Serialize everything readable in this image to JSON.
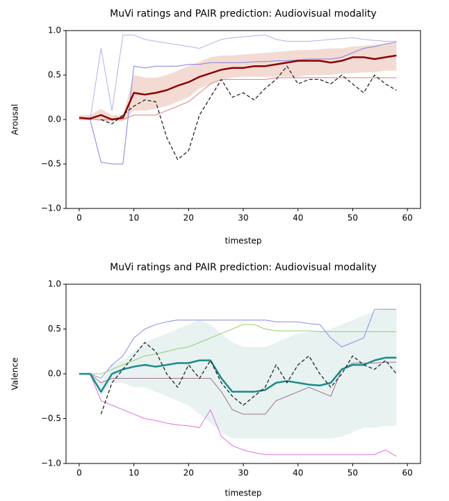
{
  "chart_data": [
    {
      "type": "line",
      "title": "MuVi ratings and PAIR prediction: Audiovisual modality",
      "xlabel": "timestep",
      "ylabel": "Arousal",
      "xlim": [
        -2.4,
        62.4
      ],
      "ylim": [
        -1,
        1
      ],
      "xticks": [
        0,
        10,
        20,
        30,
        40,
        50,
        60
      ],
      "yticks": [
        {
          "value": -1,
          "label": "−1.0"
        },
        {
          "value": -0.5,
          "label": "−0.5"
        },
        {
          "value": 0,
          "label": "0.0"
        },
        {
          "value": 0.5,
          "label": "0.5"
        },
        {
          "value": 1,
          "label": "1.0"
        }
      ],
      "x": [
        0,
        2,
        4,
        6,
        8,
        10,
        12,
        14,
        16,
        18,
        20,
        22,
        24,
        26,
        28,
        30,
        32,
        34,
        36,
        38,
        40,
        42,
        44,
        46,
        48,
        50,
        52,
        54,
        56,
        58
      ],
      "band": {
        "color": "#e8b8aa",
        "lower": [
          0,
          0,
          -0.02,
          -0.02,
          -0.02,
          0.1,
          0.1,
          0.12,
          0.15,
          0.2,
          0.25,
          0.35,
          0.4,
          0.45,
          0.47,
          0.48,
          0.48,
          0.48,
          0.48,
          0.48,
          0.48,
          0.5,
          0.5,
          0.5,
          0.52,
          0.52,
          0.53,
          0.53,
          0.55,
          0.55
        ],
        "upper": [
          0.05,
          0.05,
          0.12,
          0.05,
          0.05,
          0.5,
          0.47,
          0.47,
          0.5,
          0.55,
          0.6,
          0.65,
          0.7,
          0.72,
          0.72,
          0.73,
          0.74,
          0.75,
          0.76,
          0.77,
          0.78,
          0.78,
          0.79,
          0.8,
          0.8,
          0.82,
          0.83,
          0.84,
          0.85,
          0.86
        ]
      },
      "series": [
        {
          "color": "#b0b0f0",
          "width": 1,
          "values": [
            0,
            0,
            0.8,
            0.1,
            0.95,
            0.95,
            0.9,
            0.88,
            0.86,
            0.84,
            0.82,
            0.8,
            0.85,
            0.9,
            0.92,
            0.93,
            0.94,
            0.95,
            0.9,
            0.88,
            0.88,
            0.88,
            0.89,
            0.9,
            0.91,
            0.92,
            0.9,
            0.89,
            0.88,
            0.88
          ]
        },
        {
          "color": "#8080e0",
          "width": 1,
          "values": [
            0,
            0,
            -0.48,
            -0.5,
            -0.5,
            0.6,
            0.58,
            0.6,
            0.6,
            0.6,
            0.62,
            0.62,
            0.64,
            0.64,
            0.64,
            0.64,
            0.65,
            0.65,
            0.66,
            0.66,
            0.67,
            0.68,
            0.68,
            0.68,
            0.7,
            0.75,
            0.8,
            0.82,
            0.85,
            0.87
          ]
        },
        {
          "color": "#d88080",
          "width": 1,
          "values": [
            0,
            0,
            0,
            0,
            0,
            0.05,
            0.05,
            0.05,
            0.1,
            0.15,
            0.2,
            0.3,
            0.4,
            0.45,
            0.45,
            0.45,
            0.45,
            0.45,
            0.47,
            0.47,
            0.47,
            0.47,
            0.47,
            0.47,
            0.47,
            0.47,
            0.47,
            0.47,
            0.47,
            0.47
          ]
        },
        {
          "color": "#8b0000",
          "width": 2.5,
          "values": [
            0.02,
            0.01,
            0.05,
            0,
            0.02,
            0.3,
            0.28,
            0.3,
            0.33,
            0.38,
            0.42,
            0.48,
            0.52,
            0.56,
            0.58,
            0.58,
            0.6,
            0.6,
            0.62,
            0.64,
            0.66,
            0.66,
            0.66,
            0.64,
            0.66,
            0.7,
            0.7,
            0.68,
            0.7,
            0.72
          ]
        },
        {
          "color": "#222222",
          "width": 1.3,
          "style": "dashed",
          "values": [
            null,
            null,
            0,
            -0.05,
            0.05,
            0.15,
            0.22,
            0.2,
            -0.2,
            -0.45,
            -0.35,
            0.05,
            0.25,
            0.45,
            0.25,
            0.3,
            0.22,
            0.35,
            0.45,
            0.6,
            0.4,
            0.45,
            0.45,
            0.4,
            0.5,
            0.4,
            0.3,
            0.5,
            0.4,
            0.33
          ]
        }
      ]
    },
    {
      "type": "line",
      "title": "MuVi ratings and PAIR prediction: Audiovisual modality",
      "xlabel": "timestep",
      "ylabel": "Valence",
      "xlim": [
        -2.4,
        62.4
      ],
      "ylim": [
        -1,
        1
      ],
      "xticks": [
        0,
        10,
        20,
        30,
        40,
        50,
        60
      ],
      "yticks": [
        {
          "value": -1,
          "label": "−1.0"
        },
        {
          "value": -0.5,
          "label": "−0.5"
        },
        {
          "value": 0,
          "label": "0.0"
        },
        {
          "value": 0.5,
          "label": "0.5"
        },
        {
          "value": 1,
          "label": "1.0"
        }
      ],
      "x": [
        0,
        2,
        4,
        6,
        8,
        10,
        12,
        14,
        16,
        18,
        20,
        22,
        24,
        26,
        28,
        30,
        32,
        34,
        36,
        38,
        40,
        42,
        44,
        46,
        48,
        50,
        52,
        54,
        56,
        58
      ],
      "band": {
        "color": "#cfe6e4",
        "lower": [
          0,
          0,
          -0.25,
          -0.1,
          -0.1,
          -0.15,
          -0.15,
          -0.2,
          -0.25,
          -0.3,
          -0.35,
          -0.45,
          -0.55,
          -0.65,
          -0.72,
          -0.72,
          -0.72,
          -0.72,
          -0.72,
          -0.72,
          -0.72,
          -0.72,
          -0.72,
          -0.72,
          -0.7,
          -0.65,
          -0.6,
          -0.6,
          -0.58,
          -0.58
        ],
        "upper": [
          0,
          0,
          -0.1,
          0.1,
          0.15,
          0.25,
          0.35,
          0.4,
          0.45,
          0.5,
          0.55,
          0.6,
          0.55,
          0.45,
          0.35,
          0.3,
          0.3,
          0.3,
          0.35,
          0.4,
          0.45,
          0.47,
          0.48,
          0.5,
          0.55,
          0.6,
          0.65,
          0.7,
          0.72,
          0.72
        ]
      },
      "series": [
        {
          "color": "#8a8ae6",
          "width": 1,
          "values": [
            0,
            0,
            -0.05,
            0.1,
            0.2,
            0.4,
            0.5,
            0.55,
            0.58,
            0.6,
            0.6,
            0.6,
            0.6,
            0.6,
            0.6,
            0.6,
            0.6,
            0.6,
            0.58,
            0.58,
            0.58,
            0.56,
            0.55,
            0.4,
            0.3,
            0.35,
            0.4,
            0.72,
            0.72,
            0.72
          ]
        },
        {
          "color": "#e070e0",
          "width": 1,
          "values": [
            0,
            0,
            -0.3,
            -0.35,
            -0.4,
            -0.45,
            -0.5,
            -0.52,
            -0.55,
            -0.57,
            -0.58,
            -0.6,
            -0.4,
            -0.7,
            -0.8,
            -0.85,
            -0.88,
            -0.9,
            -0.9,
            -0.9,
            -0.9,
            -0.9,
            -0.9,
            -0.9,
            -0.9,
            -0.9,
            -0.9,
            -0.9,
            -0.85,
            -0.92
          ]
        },
        {
          "color": "#90d070",
          "width": 1,
          "values": [
            0,
            0,
            0,
            0.05,
            0.1,
            0.15,
            0.2,
            0.22,
            0.25,
            0.28,
            0.3,
            0.35,
            0.4,
            0.45,
            0.5,
            0.55,
            0.55,
            0.5,
            0.48,
            0.48,
            0.48,
            0.48,
            0.47,
            0.47,
            0.47,
            0.47,
            0.47,
            0.47,
            0.47,
            0.47
          ]
        },
        {
          "color": "#a07090",
          "width": 1,
          "values": [
            0,
            0,
            -0.1,
            -0.05,
            -0.05,
            -0.05,
            -0.05,
            -0.05,
            -0.05,
            -0.05,
            -0.05,
            -0.05,
            -0.05,
            -0.2,
            -0.4,
            -0.45,
            -0.45,
            -0.45,
            -0.3,
            -0.25,
            -0.2,
            -0.15,
            -0.2,
            -0.25,
            0.05,
            0.12,
            0.12,
            0.12,
            0.13,
            0.13
          ]
        },
        {
          "color": "#1a8a8a",
          "width": 2.5,
          "values": [
            0,
            0,
            -0.2,
            0,
            0.05,
            0.08,
            0.1,
            0.08,
            0.1,
            0.12,
            0.12,
            0.15,
            0.15,
            -0.05,
            -0.2,
            -0.2,
            -0.2,
            -0.18,
            -0.1,
            -0.08,
            -0.1,
            -0.12,
            -0.13,
            -0.1,
            0.05,
            0.1,
            0.1,
            0.15,
            0.18,
            0.18
          ]
        },
        {
          "color": "#222222",
          "width": 1.3,
          "style": "dashed",
          "values": [
            null,
            null,
            -0.45,
            -0.1,
            0.05,
            0.2,
            0.35,
            0.25,
            0,
            -0.15,
            0.1,
            -0.05,
            0.15,
            -0.1,
            -0.25,
            -0.35,
            -0.25,
            -0.15,
            0.1,
            -0.1,
            0.1,
            0.2,
            0,
            -0.15,
            0,
            0.2,
            0.1,
            0.05,
            0.15,
            0
          ]
        }
      ]
    }
  ]
}
